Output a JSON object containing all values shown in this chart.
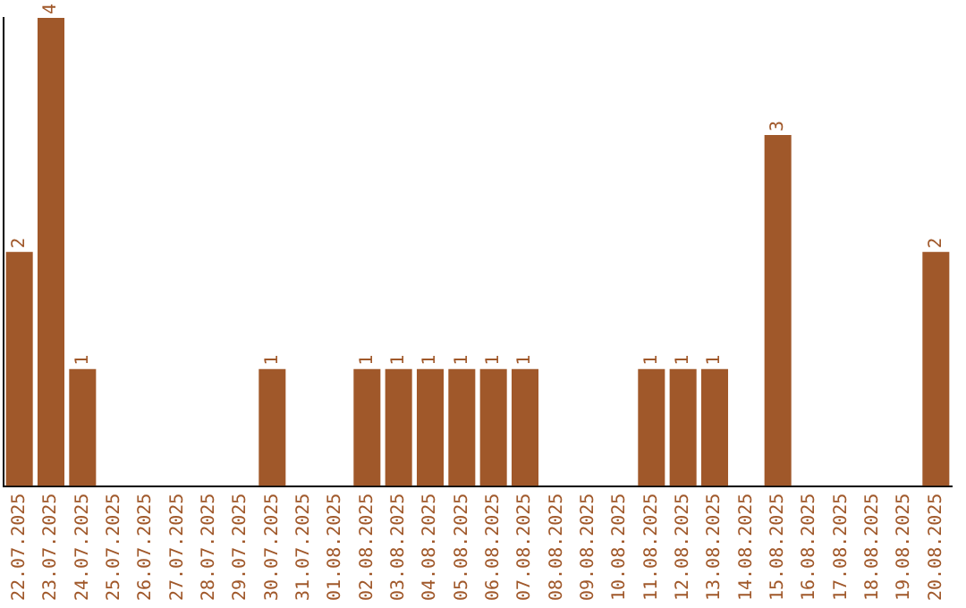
{
  "chart_data": {
    "type": "bar",
    "categories": [
      "22.07.2025",
      "23.07.2025",
      "24.07.2025",
      "25.07.2025",
      "26.07.2025",
      "27.07.2025",
      "28.07.2025",
      "29.07.2025",
      "30.07.2025",
      "31.07.2025",
      "01.08.2025",
      "02.08.2025",
      "03.08.2025",
      "04.08.2025",
      "05.08.2025",
      "06.08.2025",
      "07.08.2025",
      "08.08.2025",
      "09.08.2025",
      "10.08.2025",
      "11.08.2025",
      "12.08.2025",
      "13.08.2025",
      "14.08.2025",
      "15.08.2025",
      "16.08.2025",
      "17.08.2025",
      "18.08.2025",
      "19.08.2025",
      "20.08.2025"
    ],
    "values": [
      2,
      4,
      1,
      0,
      0,
      0,
      0,
      0,
      1,
      0,
      0,
      1,
      1,
      1,
      1,
      1,
      1,
      0,
      0,
      0,
      1,
      1,
      1,
      0,
      3,
      0,
      0,
      0,
      0,
      2
    ],
    "value_labels": [
      "2",
      "4",
      "1",
      null,
      null,
      null,
      null,
      null,
      "1",
      null,
      null,
      "1",
      "1",
      "1",
      "1",
      "1",
      "1",
      null,
      null,
      null,
      "1",
      "1",
      "1",
      null,
      "3",
      null,
      null,
      null,
      null,
      "2"
    ],
    "color": "#a0582a",
    "grid": false,
    "legend": false,
    "tick_labels": "x"
  }
}
